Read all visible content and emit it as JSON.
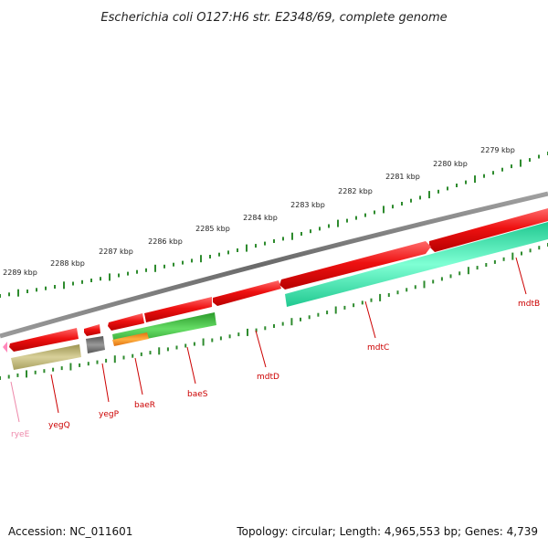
{
  "title": "Escherichia coli O127:H6 str. E2348/69, complete genome",
  "footer": {
    "accession": "Accession: NC_011601",
    "stats": "Topology: circular; Length: 4,965,553 bp; Genes: 4,739"
  },
  "scale_labels": [
    "2279 kbp",
    "2280 kbp",
    "2281 kbp",
    "2282 kbp",
    "2283 kbp",
    "2284 kbp",
    "2285 kbp",
    "2286 kbp",
    "2287 kbp",
    "2288 kbp",
    "2289 kbp"
  ],
  "genes": [
    {
      "name": "mdtB"
    },
    {
      "name": "mdtC"
    },
    {
      "name": "mdtD"
    },
    {
      "name": "baeS"
    },
    {
      "name": "baeR"
    },
    {
      "name": "yegP"
    },
    {
      "name": "yegQ"
    },
    {
      "name": "ryeE"
    }
  ],
  "colors": {
    "cds": "#ee1111",
    "cds_label": "#cc0000",
    "backbone": "#808080",
    "tick": "#2e8b2e",
    "teal_feature": "#22e8a8",
    "green_feature": "#3cb83c",
    "olive_feature": "#b8b070",
    "orange_feature": "#f09020",
    "gray_feature": "#666666",
    "rna": "#ff88bb",
    "rna_label": "#ee88aa"
  }
}
